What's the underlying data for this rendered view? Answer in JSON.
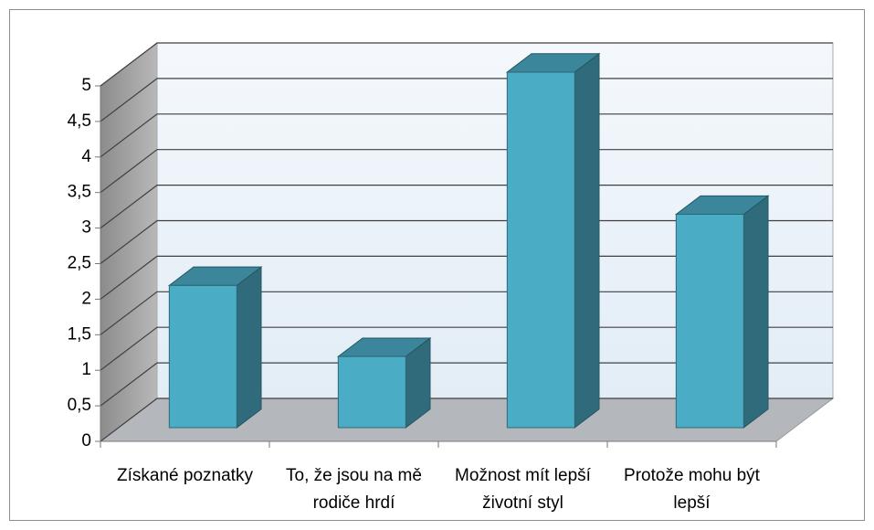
{
  "chart_data": {
    "type": "bar3d",
    "categories": [
      "Získané poznatky",
      "To, že jsou na mě rodiče hrdí",
      "Možnost mít lepší životní styl",
      "Protože mohu být lepší"
    ],
    "values": [
      2,
      1,
      5,
      3
    ],
    "color": "#4bacc6",
    "ylim": [
      0,
      5
    ],
    "yticks": [
      0,
      {
        "value": 0.5,
        "label": "0,5"
      },
      1,
      {
        "value": 1.5,
        "label": "1,5"
      },
      2,
      {
        "value": 2.5,
        "label": "2,5"
      },
      3,
      {
        "value": 3.5,
        "label": "3,5"
      },
      4,
      {
        "value": 4.5,
        "label": "4,5"
      },
      5
    ],
    "grid": true
  }
}
